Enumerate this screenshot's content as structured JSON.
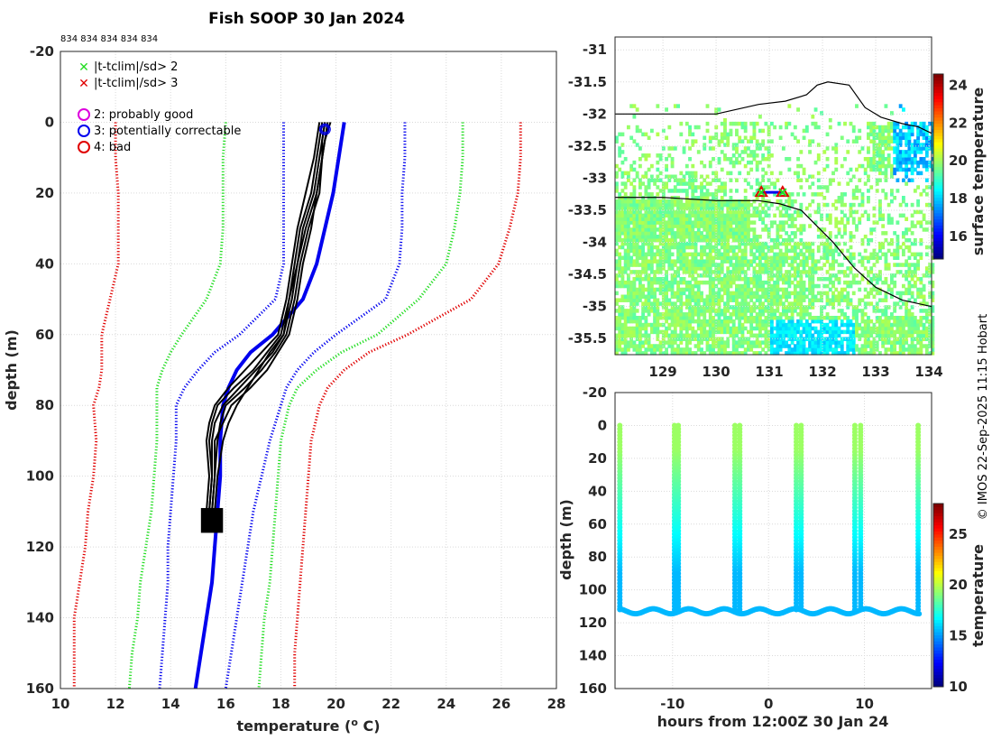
{
  "title": "Fish SOOP 30 Jan 2024",
  "profile_count_label": "834 834 834 834 834",
  "credit": "© IMOS 22-Sep-2025 11:15 Hobart",
  "legend": {
    "flag_sd2": "|t-tclim|/sd> 2",
    "flag_sd3": "|t-tclim|/sd> 3",
    "qc2": "2: probably good",
    "qc3": "3: potentially correctable",
    "qc4": "4: bad"
  },
  "colors": {
    "green": "#22dd22",
    "red": "#e00000",
    "blue": "#0000ee",
    "magenta": "#dd00dd"
  },
  "chart_data": [
    {
      "id": "profile",
      "type": "line",
      "title": "Fish SOOP 30 Jan 2024",
      "xlabel": "temperature (o C)",
      "ylabel": "depth (m)",
      "xlim": [
        10,
        28
      ],
      "ylim": [
        -20,
        160
      ],
      "xticks": [
        10,
        12,
        14,
        16,
        18,
        20,
        22,
        24,
        26,
        28
      ],
      "yticks": [
        -20,
        0,
        20,
        40,
        60,
        80,
        100,
        120,
        140,
        160
      ],
      "grid": true,
      "depths": [
        0,
        10,
        20,
        30,
        40,
        50,
        60,
        65,
        70,
        75,
        80,
        90,
        100,
        110,
        120,
        130,
        140,
        150,
        160
      ],
      "series": [
        {
          "name": "mean (climatology)",
          "style": "solid",
          "color": "#0000ee",
          "values": [
            20.3,
            20.1,
            19.9,
            19.6,
            19.3,
            18.8,
            17.7,
            16.9,
            16.4,
            16.1,
            15.9,
            15.8,
            15.8,
            15.7,
            15.6,
            15.5,
            15.3,
            15.1,
            14.9
          ]
        },
        {
          "name": "clim -1sd",
          "style": "dotted",
          "color": "#0000ee",
          "values": [
            18.1,
            18.1,
            18.1,
            18.1,
            18.1,
            17.8,
            16.5,
            15.6,
            15.0,
            14.5,
            14.2,
            14.2,
            14.1,
            14.0,
            13.9,
            13.9,
            13.8,
            13.7,
            13.6
          ]
        },
        {
          "name": "clim +1sd",
          "style": "dotted",
          "color": "#0000ee",
          "values": [
            22.5,
            22.5,
            22.4,
            22.4,
            22.3,
            21.8,
            20.0,
            19.2,
            18.6,
            18.2,
            18.0,
            17.6,
            17.3,
            17.0,
            16.8,
            16.6,
            16.4,
            16.2,
            16.0
          ]
        },
        {
          "name": "clim -2sd",
          "style": "dotted",
          "color": "#22dd22",
          "values": [
            16.0,
            15.9,
            15.9,
            15.9,
            15.8,
            15.3,
            14.4,
            14.0,
            13.7,
            13.5,
            13.5,
            13.5,
            13.4,
            13.3,
            13.1,
            12.9,
            12.8,
            12.6,
            12.5
          ]
        },
        {
          "name": "clim +2sd",
          "style": "dotted",
          "color": "#22dd22",
          "values": [
            24.6,
            24.6,
            24.5,
            24.3,
            24.0,
            23.0,
            21.5,
            20.2,
            19.3,
            18.6,
            18.3,
            18.0,
            17.9,
            17.8,
            17.7,
            17.6,
            17.4,
            17.3,
            17.2
          ]
        },
        {
          "name": "clim -3sd",
          "style": "dotted",
          "color": "#e00000",
          "values": [
            12.0,
            12.0,
            12.1,
            12.1,
            12.1,
            11.8,
            11.5,
            11.5,
            11.5,
            11.4,
            11.2,
            11.3,
            11.2,
            11.0,
            10.9,
            10.7,
            10.5,
            10.5,
            10.5
          ]
        },
        {
          "name": "clim +3sd",
          "style": "dotted",
          "color": "#e00000",
          "values": [
            26.7,
            26.7,
            26.6,
            26.3,
            25.9,
            24.9,
            22.6,
            21.2,
            20.3,
            19.7,
            19.4,
            19.1,
            19.0,
            18.9,
            18.8,
            18.7,
            18.6,
            18.5,
            18.5
          ]
        }
      ],
      "casts": [
        {
          "depths": [
            0,
            5,
            10,
            20,
            30,
            40,
            50,
            60,
            65,
            70,
            75,
            80,
            85,
            90,
            100,
            110,
            115
          ],
          "values": [
            19.6,
            19.5,
            19.5,
            19.4,
            19.0,
            18.7,
            18.5,
            18.2,
            17.8,
            17.3,
            16.7,
            16.0,
            15.8,
            15.7,
            15.6,
            15.5,
            15.5
          ]
        },
        {
          "depths": [
            0,
            5,
            10,
            20,
            30,
            40,
            50,
            60,
            65,
            70,
            75,
            80,
            85,
            90,
            100,
            110,
            115
          ],
          "values": [
            19.5,
            19.4,
            19.3,
            19.1,
            18.7,
            18.5,
            18.3,
            18.0,
            17.5,
            17.0,
            16.3,
            15.7,
            15.5,
            15.4,
            15.5,
            15.4,
            15.5
          ]
        },
        {
          "depths": [
            0,
            5,
            10,
            20,
            30,
            40,
            50,
            60,
            65,
            70,
            75,
            80,
            85,
            90,
            100,
            110,
            115
          ],
          "values": [
            19.7,
            19.6,
            19.5,
            19.3,
            18.9,
            18.6,
            18.4,
            18.1,
            17.6,
            17.2,
            16.8,
            16.4,
            16.1,
            15.9,
            15.7,
            15.6,
            15.5
          ]
        },
        {
          "depths": [
            0,
            5,
            10,
            20,
            30,
            40,
            50,
            60,
            65,
            70,
            75,
            80,
            85,
            90,
            100,
            110,
            115
          ],
          "values": [
            19.4,
            19.3,
            19.2,
            18.9,
            18.6,
            18.4,
            18.2,
            17.9,
            17.3,
            16.7,
            16.1,
            15.6,
            15.4,
            15.3,
            15.4,
            15.3,
            15.4
          ]
        },
        {
          "depths": [
            0,
            5,
            10,
            20,
            30,
            40,
            50,
            60,
            65,
            70,
            75,
            80,
            85,
            90,
            100,
            110,
            115
          ],
          "values": [
            19.6,
            19.5,
            19.4,
            19.2,
            18.8,
            18.6,
            18.3,
            18.1,
            17.7,
            17.1,
            16.5,
            15.9,
            15.6,
            15.5,
            15.5,
            15.4,
            15.6
          ]
        },
        {
          "depths": [
            0,
            5,
            10,
            20,
            30,
            40,
            50,
            60,
            65,
            70,
            75,
            80,
            85,
            90,
            100,
            110,
            115
          ],
          "values": [
            19.8,
            19.6,
            19.5,
            19.3,
            19.1,
            18.8,
            18.6,
            18.3,
            17.9,
            17.5,
            16.9,
            16.2,
            15.9,
            15.6,
            15.6,
            15.5,
            15.4
          ]
        }
      ],
      "qc_markers": [
        {
          "flag": 3,
          "temperature": 19.6,
          "depth": 2
        }
      ]
    },
    {
      "id": "map",
      "type": "heatmap",
      "colorbar_label": "surface temperature",
      "xlim": [
        128.1,
        134.05
      ],
      "ylim": [
        -35.75,
        -30.8
      ],
      "xticks": [
        129,
        130,
        131,
        132,
        133,
        134
      ],
      "yticks": [
        -31,
        -31.5,
        -32,
        -32.5,
        -33,
        -33.5,
        -34,
        -34.5,
        -35,
        -35.5
      ],
      "clim": [
        14.8,
        24.6
      ],
      "colorbar_ticks": [
        16,
        18,
        20,
        22,
        24
      ],
      "track": {
        "lon": [
          130.85,
          131.25
        ],
        "lat": [
          -33.22,
          -33.22
        ]
      }
    },
    {
      "id": "timeseries",
      "type": "scatter",
      "xlabel": "hours from 12:00Z 30 Jan 24",
      "ylabel": "depth (m)",
      "colorbar_label": "temperature",
      "xlim": [
        -16,
        17
      ],
      "ylim": [
        -20,
        160
      ],
      "xticks": [
        -10,
        0,
        10
      ],
      "yticks": [
        -20,
        0,
        20,
        40,
        60,
        80,
        100,
        120,
        140,
        160
      ],
      "clim": [
        10,
        28
      ],
      "colorbar_ticks": [
        10,
        15,
        20,
        25
      ],
      "surfacings": [
        -15.5,
        -9.8,
        -9.4,
        -3.5,
        -3.0,
        2.9,
        3.4,
        9.0,
        9.6,
        15.6
      ],
      "bottom_depth": 113,
      "surface_temperature": 19.5,
      "bottom_temperature": 15.5
    }
  ]
}
